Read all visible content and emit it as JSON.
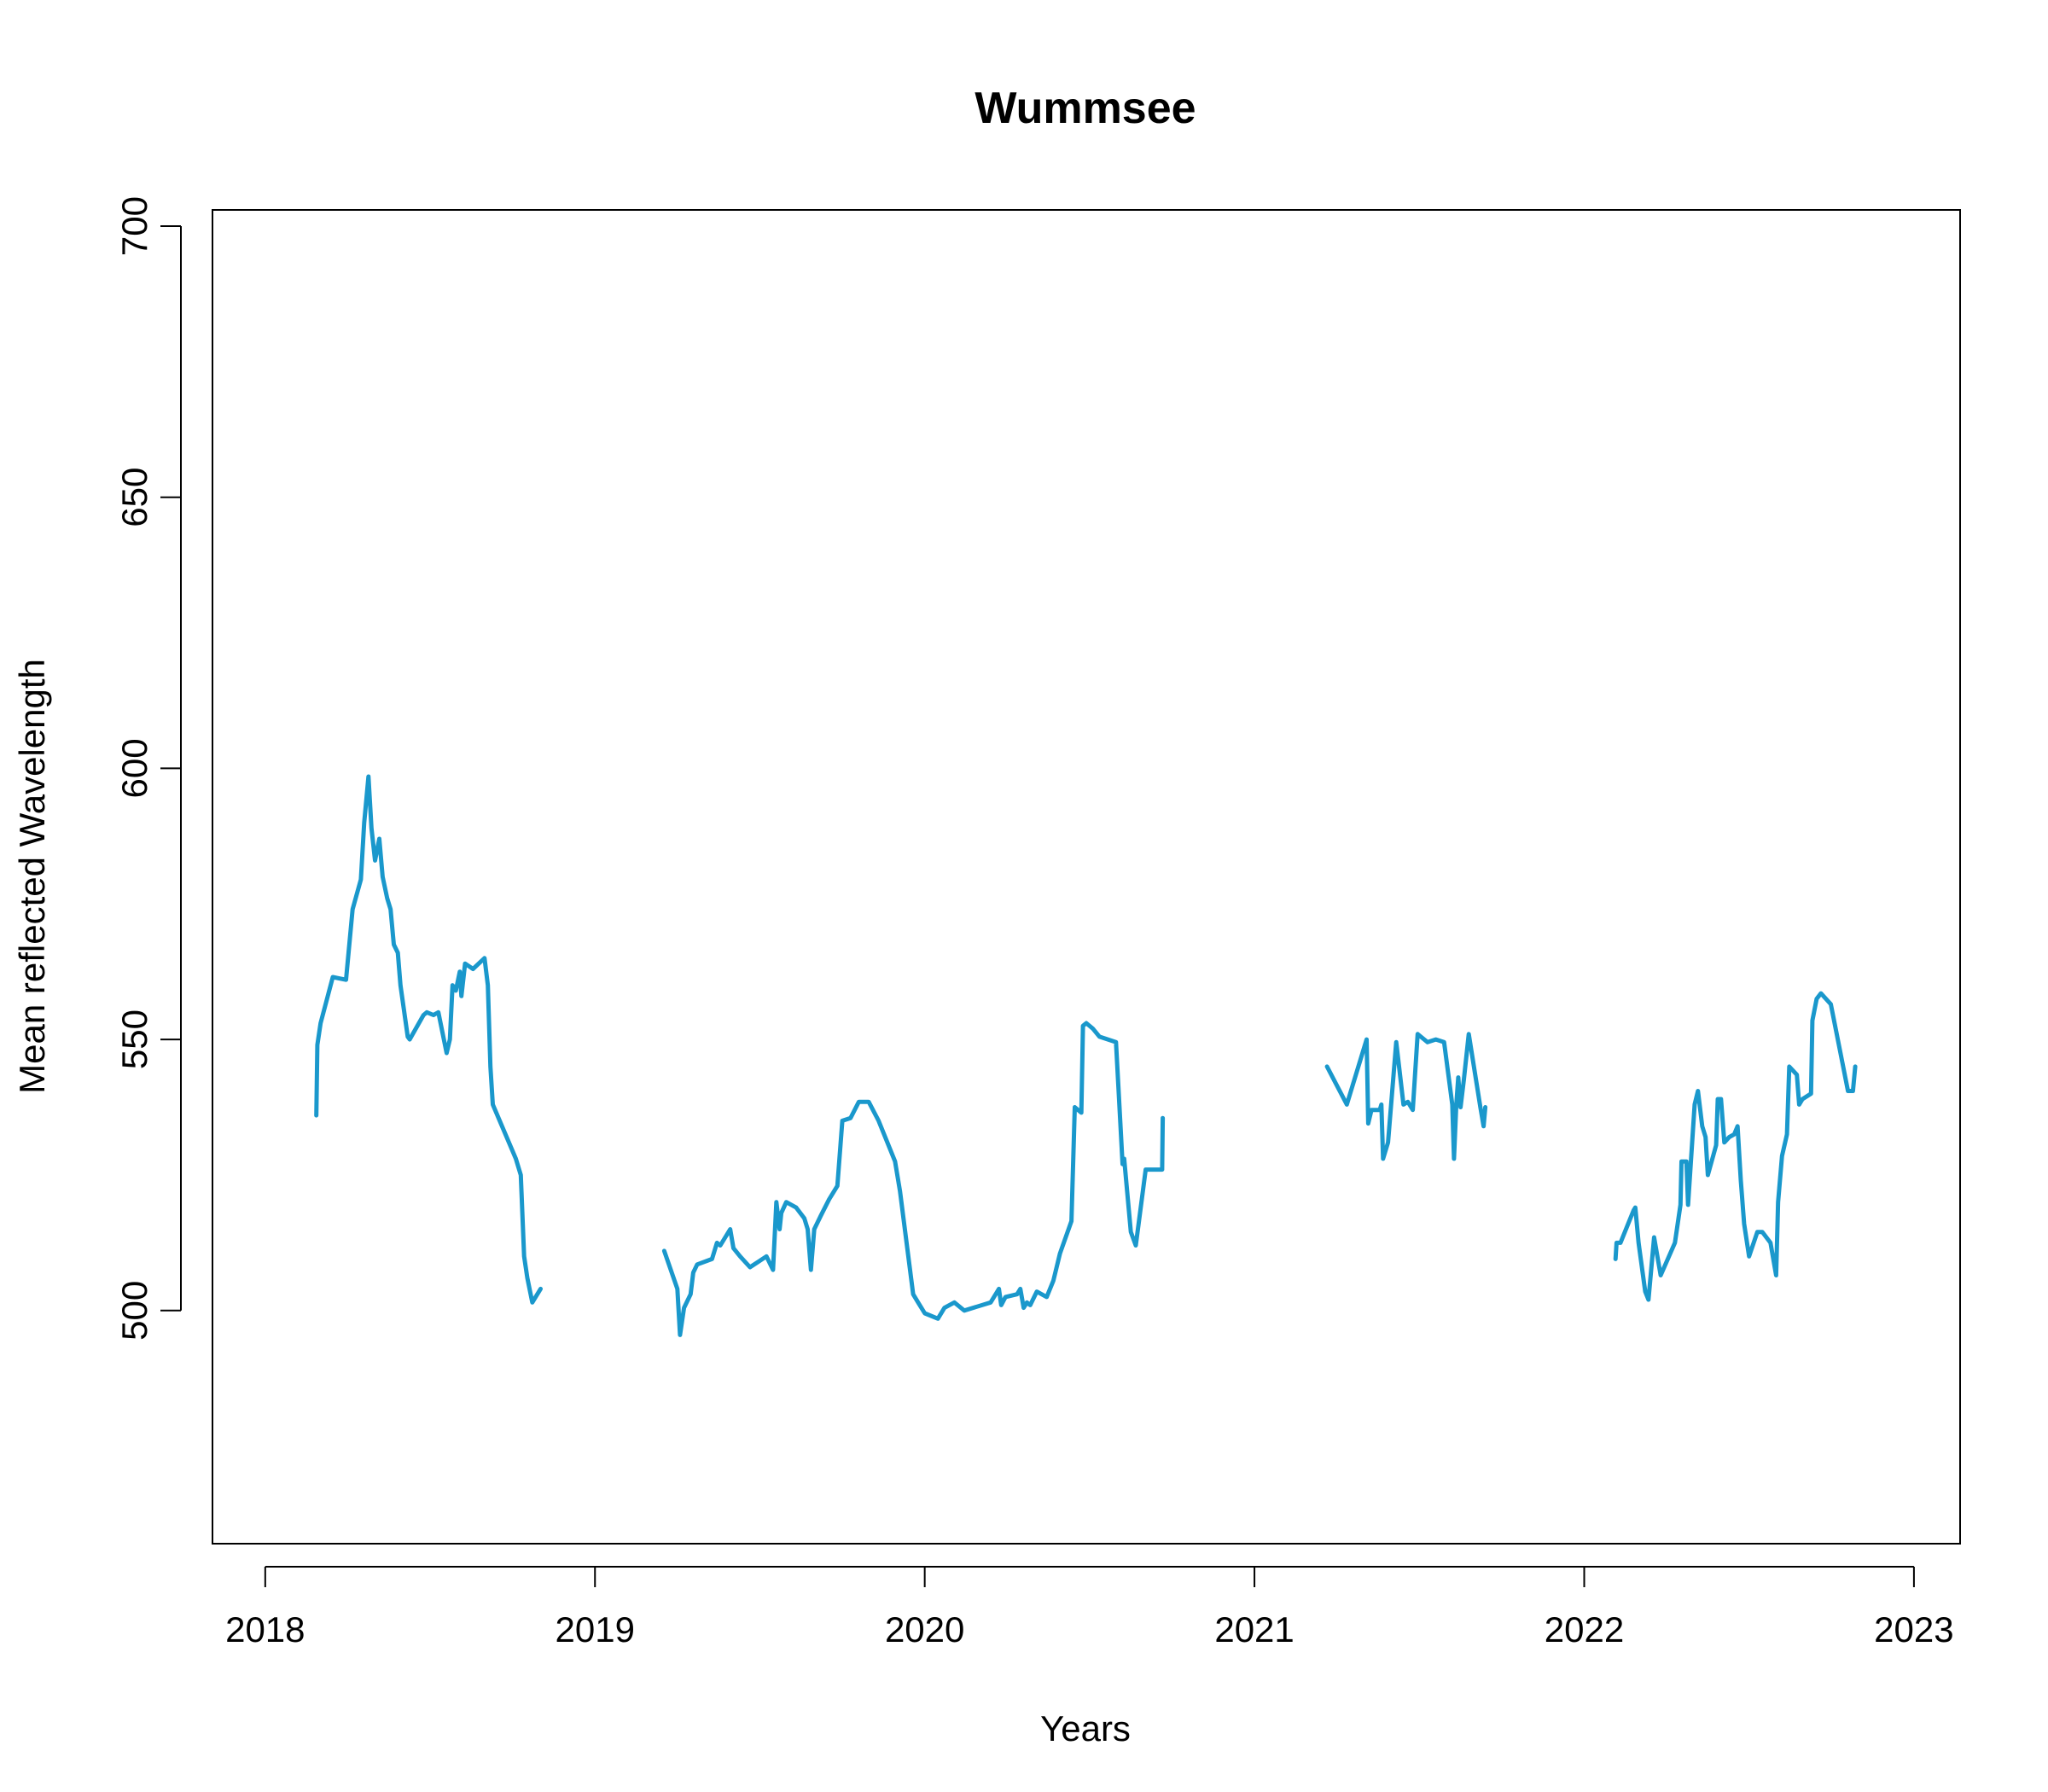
{
  "chart_data": {
    "type": "line",
    "title": "Wummsee",
    "xlabel": "Years",
    "ylabel": "Mean reflected Wavelength",
    "xlim": [
      2017.84,
      2023.14
    ],
    "ylim": [
      457,
      703
    ],
    "x_ticks": [
      2018,
      2019,
      2020,
      2021,
      2022,
      2023
    ],
    "x_tick_labels": [
      "2018",
      "2019",
      "2020",
      "2021",
      "2022",
      "2023"
    ],
    "y_ticks": [
      500,
      550,
      600,
      650,
      700
    ],
    "y_tick_labels": [
      "500",
      "550",
      "600",
      "650",
      "700"
    ],
    "grid": false,
    "legend": "none",
    "color": "#1A98CC",
    "segments": [
      [
        [
          2018.155,
          536
        ],
        [
          2018.158,
          549
        ],
        [
          2018.168,
          553
        ],
        [
          2018.205,
          561.5
        ],
        [
          2018.245,
          561
        ],
        [
          2018.265,
          574
        ],
        [
          2018.29,
          579.5
        ],
        [
          2018.3,
          590
        ],
        [
          2018.313,
          598.5
        ],
        [
          2018.322,
          589
        ],
        [
          2018.333,
          583
        ],
        [
          2018.346,
          587
        ],
        [
          2018.356,
          580
        ],
        [
          2018.37,
          576
        ],
        [
          2018.38,
          574
        ],
        [
          2018.39,
          567.5
        ],
        [
          2018.402,
          566
        ],
        [
          2018.41,
          560
        ],
        [
          2018.432,
          550.5
        ],
        [
          2018.438,
          550
        ],
        [
          2018.48,
          554.5
        ],
        [
          2018.49,
          555
        ],
        [
          2018.51,
          554.5
        ],
        [
          2018.525,
          555
        ],
        [
          2018.55,
          547.5
        ],
        [
          2018.56,
          550
        ],
        [
          2018.568,
          560
        ],
        [
          2018.578,
          559
        ],
        [
          2018.59,
          562.5
        ],
        [
          2018.595,
          558
        ],
        [
          2018.606,
          564
        ],
        [
          2018.63,
          563
        ],
        [
          2018.665,
          565
        ],
        [
          2018.675,
          560
        ],
        [
          2018.683,
          545
        ],
        [
          2018.69,
          538
        ],
        [
          2018.76,
          528
        ],
        [
          2018.775,
          525
        ],
        [
          2018.785,
          510
        ],
        [
          2018.795,
          506
        ],
        [
          2018.81,
          501.5
        ],
        [
          2018.835,
          504
        ]
      ],
      [
        [
          2019.21,
          511
        ],
        [
          2019.25,
          504
        ],
        [
          2019.258,
          495.5
        ],
        [
          2019.27,
          500.5
        ],
        [
          2019.29,
          503
        ],
        [
          2019.298,
          507
        ],
        [
          2019.31,
          508.5
        ],
        [
          2019.355,
          509.5
        ],
        [
          2019.37,
          512.5
        ],
        [
          2019.38,
          512
        ],
        [
          2019.41,
          515
        ],
        [
          2019.42,
          511.5
        ],
        [
          2019.44,
          510
        ],
        [
          2019.47,
          508
        ],
        [
          2019.52,
          510
        ],
        [
          2019.54,
          507.5
        ],
        [
          2019.55,
          520
        ],
        [
          2019.56,
          515
        ],
        [
          2019.565,
          518
        ],
        [
          2019.58,
          520
        ],
        [
          2019.61,
          519
        ],
        [
          2019.635,
          517
        ],
        [
          2019.645,
          515
        ],
        [
          2019.655,
          507.5
        ],
        [
          2019.665,
          515
        ],
        [
          2019.685,
          517.5
        ],
        [
          2019.71,
          520.5
        ],
        [
          2019.735,
          523
        ],
        [
          2019.75,
          535
        ],
        [
          2019.775,
          535.5
        ],
        [
          2019.8,
          538.5
        ],
        [
          2019.83,
          538.5
        ],
        [
          2019.86,
          535
        ],
        [
          2019.91,
          527.5
        ],
        [
          2019.925,
          522
        ],
        [
          2019.965,
          503
        ],
        [
          2019.98,
          501.5
        ],
        [
          2020.0,
          499.5
        ],
        [
          2020.04,
          498.5
        ],
        [
          2020.06,
          500.5
        ],
        [
          2020.09,
          501.5
        ],
        [
          2020.12,
          500
        ],
        [
          2020.2,
          501.5
        ],
        [
          2020.22,
          503.5
        ],
        [
          2020.225,
          504
        ],
        [
          2020.232,
          501
        ],
        [
          2020.245,
          502.5
        ],
        [
          2020.28,
          503
        ],
        [
          2020.29,
          504
        ],
        [
          2020.3,
          500.5
        ],
        [
          2020.31,
          501.5
        ],
        [
          2020.32,
          501
        ],
        [
          2020.34,
          503.5
        ],
        [
          2020.37,
          502.5
        ],
        [
          2020.39,
          505.5
        ],
        [
          2020.41,
          510.5
        ],
        [
          2020.445,
          516.5
        ],
        [
          2020.455,
          537.5
        ],
        [
          2020.475,
          536.5
        ],
        [
          2020.48,
          552.5
        ],
        [
          2020.49,
          553
        ],
        [
          2020.51,
          552
        ],
        [
          2020.53,
          550.5
        ],
        [
          2020.58,
          549.5
        ],
        [
          2020.6,
          527
        ],
        [
          2020.605,
          528
        ],
        [
          2020.625,
          514.5
        ],
        [
          2020.64,
          512
        ],
        [
          2020.67,
          526
        ],
        [
          2020.72,
          526
        ],
        [
          2020.722,
          535.5
        ]
      ],
      [
        [
          2021.22,
          545
        ],
        [
          2021.28,
          538
        ],
        [
          2021.34,
          550
        ],
        [
          2021.345,
          534.5
        ],
        [
          2021.355,
          537
        ],
        [
          2021.38,
          537
        ],
        [
          2021.385,
          538
        ],
        [
          2021.39,
          528
        ],
        [
          2021.405,
          531
        ],
        [
          2021.43,
          549.5
        ],
        [
          2021.452,
          538
        ],
        [
          2021.465,
          538.5
        ],
        [
          2021.48,
          537
        ],
        [
          2021.495,
          551
        ],
        [
          2021.525,
          549.5
        ],
        [
          2021.55,
          550
        ],
        [
          2021.575,
          549.5
        ],
        [
          2021.6,
          538
        ],
        [
          2021.605,
          528
        ],
        [
          2021.612,
          538
        ],
        [
          2021.618,
          543
        ],
        [
          2021.625,
          537.5
        ],
        [
          2021.635,
          542.5
        ],
        [
          2021.65,
          551
        ],
        [
          2021.685,
          537.5
        ],
        [
          2021.695,
          534
        ],
        [
          2021.7,
          537.5
        ]
      ],
      [
        [
          2022.095,
          509.5
        ],
        [
          2022.098,
          512.5
        ],
        [
          2022.11,
          512.5
        ],
        [
          2022.15,
          518.5
        ],
        [
          2022.155,
          519
        ],
        [
          2022.165,
          512.5
        ],
        [
          2022.185,
          503.5
        ],
        [
          2022.195,
          502
        ],
        [
          2022.212,
          513.5
        ],
        [
          2022.232,
          506.5
        ],
        [
          2022.275,
          512.5
        ],
        [
          2022.292,
          519.5
        ],
        [
          2022.295,
          527.5
        ],
        [
          2022.31,
          527.5
        ],
        [
          2022.315,
          519.5
        ],
        [
          2022.335,
          538
        ],
        [
          2022.345,
          540.5
        ],
        [
          2022.358,
          534
        ],
        [
          2022.368,
          532
        ],
        [
          2022.375,
          525
        ],
        [
          2022.4,
          530.5
        ],
        [
          2022.405,
          539
        ],
        [
          2022.415,
          539
        ],
        [
          2022.425,
          531
        ],
        [
          2022.44,
          532
        ],
        [
          2022.455,
          532.5
        ],
        [
          2022.465,
          534
        ],
        [
          2022.475,
          524
        ],
        [
          2022.485,
          516
        ],
        [
          2022.5,
          510
        ],
        [
          2022.525,
          514.5
        ],
        [
          2022.54,
          514.5
        ],
        [
          2022.565,
          512.5
        ],
        [
          2022.582,
          506.5
        ],
        [
          2022.588,
          520
        ],
        [
          2022.6,
          528.5
        ],
        [
          2022.615,
          532.5
        ],
        [
          2022.622,
          545
        ],
        [
          2022.645,
          543.5
        ],
        [
          2022.652,
          538
        ],
        [
          2022.662,
          539
        ],
        [
          2022.688,
          540
        ],
        [
          2022.692,
          553.5
        ],
        [
          2022.705,
          557.5
        ],
        [
          2022.718,
          558.5
        ],
        [
          2022.748,
          556.5
        ],
        [
          2022.8,
          540.5
        ],
        [
          2022.815,
          540.5
        ],
        [
          2022.822,
          545
        ]
      ]
    ]
  }
}
